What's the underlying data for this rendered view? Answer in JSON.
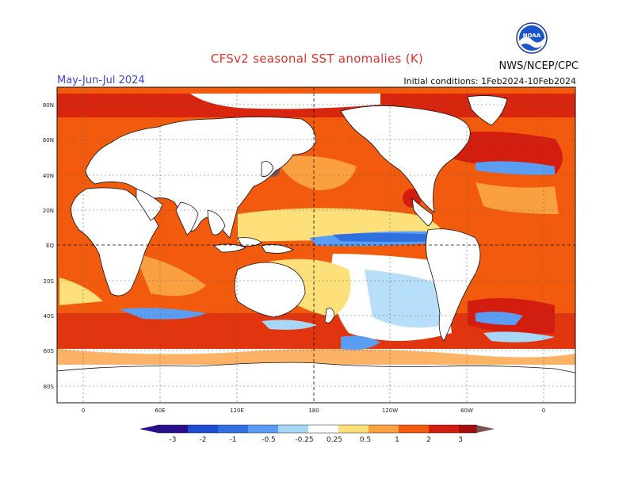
{
  "header": {
    "title": "CFSv2 seasonal SST anomalies (K)",
    "period": "May-Jun-Jul 2024",
    "initial_conditions": "Initial conditions: 1Feb2024-10Feb2024",
    "organization": "NWS/NCEP/CPC",
    "logo_text": "NOAA"
  },
  "map": {
    "lon_labels": [
      "0",
      "60E",
      "120E",
      "180",
      "120W",
      "60W",
      "0"
    ],
    "lat_labels": [
      "80N",
      "60N",
      "40N",
      "20N",
      "EQ",
      "20S",
      "40S",
      "60S",
      "80S"
    ]
  },
  "colorbar": {
    "labels": [
      "-3",
      "-2",
      "-1",
      "-0.5",
      "-0.25",
      "0.25",
      "0.5",
      "1",
      "2",
      "3"
    ],
    "colors": [
      "#2a0e8c",
      "#1f4bd0",
      "#2f6fe0",
      "#5a9df2",
      "#a6d7f7",
      "#ffffff",
      "#fde07a",
      "#fba040",
      "#f25a0d",
      "#d31d0f",
      "#a50d0d",
      "#7a5350"
    ]
  }
}
